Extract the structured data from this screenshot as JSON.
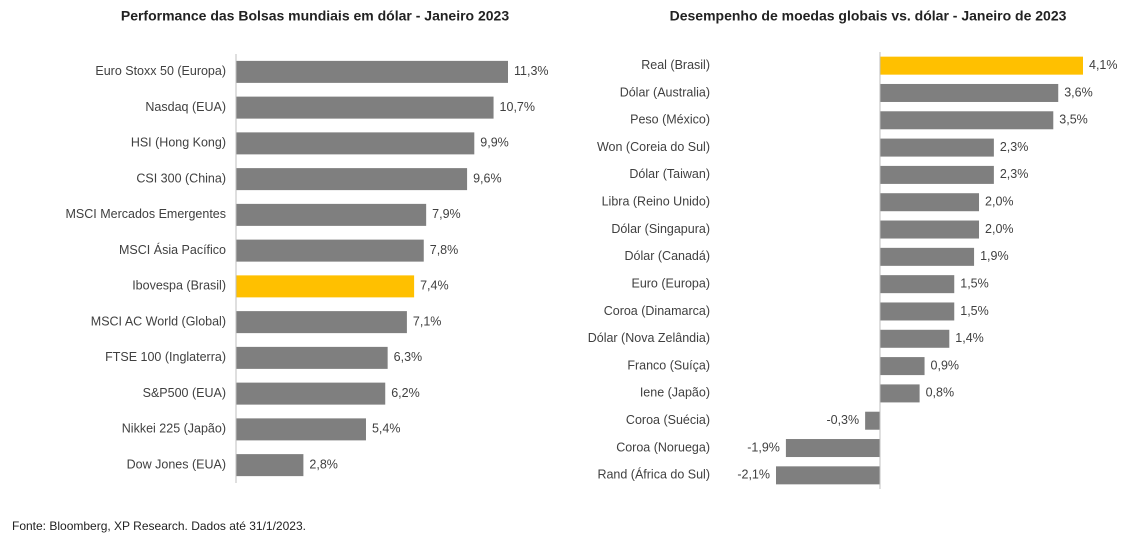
{
  "chart_data": [
    {
      "type": "bar",
      "orientation": "horizontal",
      "title": "Performance  das Bolsas mundiais em dólar - Janeiro 2023",
      "categories": [
        "Euro Stoxx 50 (Europa)",
        "Nasdaq (EUA)",
        "HSI (Hong Kong)",
        "CSI 300 (China)",
        "MSCI Mercados Emergentes",
        "MSCI Ásia Pacífico",
        "Ibovespa (Brasil)",
        "MSCI AC World (Global)",
        "FTSE 100 (Inglaterra)",
        "S&P500 (EUA)",
        "Nikkei 225 (Japão)",
        "Dow Jones (EUA)"
      ],
      "values": [
        11.3,
        10.7,
        9.9,
        9.6,
        7.9,
        7.8,
        7.4,
        7.1,
        6.3,
        6.2,
        5.4,
        2.8
      ],
      "value_labels": [
        "11,3%",
        "10,7%",
        "9,9%",
        "9,6%",
        "7,9%",
        "7,8%",
        "7,4%",
        "7,1%",
        "6,3%",
        "6,2%",
        "5,4%",
        "2,8%"
      ],
      "colors": [
        "#7f7f7f",
        "#7f7f7f",
        "#7f7f7f",
        "#7f7f7f",
        "#7f7f7f",
        "#7f7f7f",
        "#ffc000",
        "#7f7f7f",
        "#7f7f7f",
        "#7f7f7f",
        "#7f7f7f",
        "#7f7f7f"
      ],
      "xlim": [
        0,
        11.3
      ]
    },
    {
      "type": "bar",
      "orientation": "horizontal",
      "title": "Desempenho de moedas globais vs. dólar - Janeiro de 2023",
      "categories": [
        "Real (Brasil)",
        "Dólar (Australia)",
        "Peso (México)",
        "Won (Coreia do Sul)",
        "Dólar (Taiwan)",
        "Libra (Reino Unido)",
        "Dólar (Singapura)",
        "Dólar (Canadá)",
        "Euro (Europa)",
        "Coroa (Dinamarca)",
        "Dólar (Nova Zelândia)",
        "Franco (Suíça)",
        "Iene (Japão)",
        "Coroa (Suécia)",
        "Coroa (Noruega)",
        "Rand (África do Sul)"
      ],
      "values": [
        4.1,
        3.6,
        3.5,
        2.3,
        2.3,
        2.0,
        2.0,
        1.9,
        1.5,
        1.5,
        1.4,
        0.9,
        0.8,
        -0.3,
        -1.9,
        -2.1
      ],
      "value_labels": [
        "4,1%",
        "3,6%",
        "3,5%",
        "2,3%",
        "2,3%",
        "2,0%",
        "2,0%",
        "1,9%",
        "1,5%",
        "1,5%",
        "1,4%",
        "0,9%",
        "0,8%",
        "-0,3%",
        "-1,9%",
        "-2,1%"
      ],
      "colors": [
        "#ffc000",
        "#7f7f7f",
        "#7f7f7f",
        "#7f7f7f",
        "#7f7f7f",
        "#7f7f7f",
        "#7f7f7f",
        "#7f7f7f",
        "#7f7f7f",
        "#7f7f7f",
        "#7f7f7f",
        "#7f7f7f",
        "#7f7f7f",
        "#7f7f7f",
        "#7f7f7f",
        "#7f7f7f"
      ],
      "xlim": [
        -2.1,
        4.1
      ]
    }
  ],
  "source": "Fonte: Bloomberg, XP Research. Dados até 31/1/2023."
}
